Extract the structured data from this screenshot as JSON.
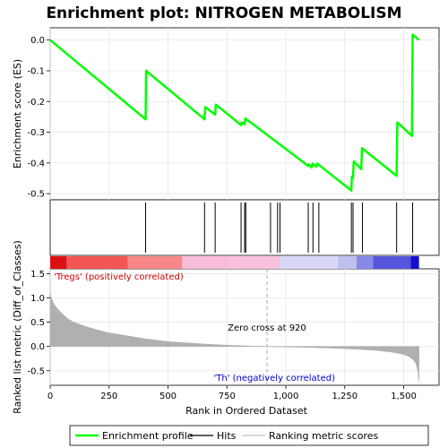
{
  "chart_data": {
    "type": "line",
    "title": "Enrichment plot: NITROGEN METABOLISM",
    "xlabel": "Rank in Ordered Dataset",
    "x_ticks": [
      0,
      250,
      500,
      750,
      1000,
      1250,
      1500
    ],
    "xlim": [
      0,
      1650
    ],
    "legend": {
      "placement": "bottom",
      "entries": [
        {
          "label": "Enrichment profile",
          "color": "#00ff00"
        },
        {
          "label": "Hits",
          "color": "#000000"
        },
        {
          "label": "Ranking metric scores",
          "color": "#c0c0c0"
        }
      ]
    },
    "enrichment_panel": {
      "ylabel": "Enrichment score (ES)",
      "ylim": [
        -0.52,
        0.04
      ],
      "y_ticks": [
        -0.5,
        -0.4,
        -0.3,
        -0.2,
        -0.1,
        0.0
      ],
      "y_tick_labels": [
        "-0.5",
        "-0.4",
        "-0.3",
        "-0.2",
        "-0.1",
        "0.0"
      ],
      "color": "#00ff00",
      "points": [
        [
          0,
          0.0
        ],
        [
          405,
          -0.258
        ],
        [
          407,
          -0.1
        ],
        [
          655,
          -0.258
        ],
        [
          658,
          -0.218
        ],
        [
          700,
          -0.243
        ],
        [
          703,
          -0.21
        ],
        [
          810,
          -0.277
        ],
        [
          813,
          -0.268
        ],
        [
          825,
          -0.275
        ],
        [
          828,
          -0.255
        ],
        [
          1095,
          -0.41
        ],
        [
          1098,
          -0.405
        ],
        [
          1110,
          -0.415
        ],
        [
          1113,
          -0.402
        ],
        [
          1130,
          -0.412
        ],
        [
          1133,
          -0.402
        ],
        [
          1278,
          -0.49
        ],
        [
          1280,
          -0.445
        ],
        [
          1285,
          -0.448
        ],
        [
          1288,
          -0.395
        ],
        [
          1320,
          -0.42
        ],
        [
          1323,
          -0.352
        ],
        [
          1470,
          -0.442
        ],
        [
          1473,
          -0.268
        ],
        [
          1535,
          -0.312
        ],
        [
          1538,
          0.018
        ],
        [
          1565,
          0.0
        ]
      ]
    },
    "hits": [
      405,
      655,
      700,
      810,
      825,
      830,
      935,
      965,
      975,
      1095,
      1115,
      1140,
      1278,
      1285,
      1325,
      1470,
      1538
    ],
    "color_bar": {
      "segments": [
        {
          "from": 0,
          "to": 70,
          "color": "#dd1111"
        },
        {
          "from": 70,
          "to": 330,
          "color": "#f45555"
        },
        {
          "from": 330,
          "to": 560,
          "color": "#f88888"
        },
        {
          "from": 560,
          "to": 760,
          "color": "#f9bbd8"
        },
        {
          "from": 760,
          "to": 975,
          "color": "#f8c0dc"
        },
        {
          "from": 975,
          "to": 1220,
          "color": "#d8d8f6"
        },
        {
          "from": 1220,
          "to": 1300,
          "color": "#c0c0f0"
        },
        {
          "from": 1300,
          "to": 1370,
          "color": "#8888e8"
        },
        {
          "from": 1370,
          "to": 1530,
          "color": "#5555dd"
        },
        {
          "from": 1530,
          "to": 1565,
          "color": "#1111cc"
        }
      ]
    },
    "metric_panel": {
      "ylabel": "Ranked list metric (Diff_of_Classes)",
      "ylim": [
        -0.8,
        1.6
      ],
      "y_ticks": [
        -0.5,
        0.0,
        0.5,
        1.0,
        1.5
      ],
      "y_tick_labels": [
        "-0.5",
        "0.0",
        "0.5",
        "1.0",
        "1.5"
      ],
      "zero_cross": 920,
      "zero_cross_label": "Zero cross at 920",
      "positive_label": "'Tregs' (positively correlated)",
      "negative_label": "'Th' (negatively correlated)",
      "fill_color": "#b0b0b0",
      "curve": [
        [
          0,
          1.1
        ],
        [
          5,
          1.0
        ],
        [
          15,
          0.88
        ],
        [
          30,
          0.78
        ],
        [
          50,
          0.68
        ],
        [
          75,
          0.57
        ],
        [
          100,
          0.5
        ],
        [
          150,
          0.41
        ],
        [
          200,
          0.34
        ],
        [
          250,
          0.28
        ],
        [
          300,
          0.24
        ],
        [
          350,
          0.2
        ],
        [
          400,
          0.16
        ],
        [
          450,
          0.13
        ],
        [
          500,
          0.1
        ],
        [
          560,
          0.08
        ],
        [
          650,
          0.05
        ],
        [
          750,
          0.025
        ],
        [
          850,
          0.008
        ],
        [
          920,
          0.0
        ],
        [
          1000,
          -0.01
        ],
        [
          1100,
          -0.02
        ],
        [
          1200,
          -0.035
        ],
        [
          1300,
          -0.055
        ],
        [
          1380,
          -0.08
        ],
        [
          1440,
          -0.11
        ],
        [
          1490,
          -0.15
        ],
        [
          1520,
          -0.2
        ],
        [
          1540,
          -0.27
        ],
        [
          1552,
          -0.35
        ],
        [
          1560,
          -0.5
        ],
        [
          1565,
          -0.72
        ]
      ]
    }
  }
}
